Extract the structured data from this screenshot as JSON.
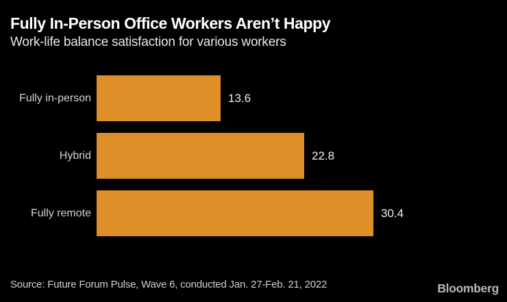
{
  "header": {
    "title": "Fully In-Person Office Workers Aren’t Happy",
    "subtitle": "Work-life balance satisfaction for various workers"
  },
  "chart_data": {
    "type": "bar",
    "orientation": "horizontal",
    "categories": [
      "Fully in-person",
      "Hybrid",
      "Fully remote"
    ],
    "values": [
      13.6,
      22.8,
      30.4
    ],
    "value_labels": [
      "13.6",
      "22.8",
      "30.4"
    ],
    "title": "Fully In-Person Office Workers Aren’t Happy",
    "subtitle": "Work-life balance satisfaction for various workers",
    "xlabel": "",
    "ylabel": "",
    "xlim": [
      0,
      30.4
    ],
    "grid": false,
    "legend": false,
    "bar_color": "#de8f28"
  },
  "colors": {
    "background": "#000000",
    "bar": "#de8f28",
    "title_text": "#ffffff",
    "label_text": "#d6d6d6",
    "value_text": "#f1f1f1",
    "source_text": "#d0d0d0",
    "logo_text": "#b8b8b8"
  },
  "footer": {
    "source": "Source: Future Forum Pulse, Wave 6, conducted Jan. 27-Feb. 21, 2022",
    "logo": "Bloomberg"
  }
}
